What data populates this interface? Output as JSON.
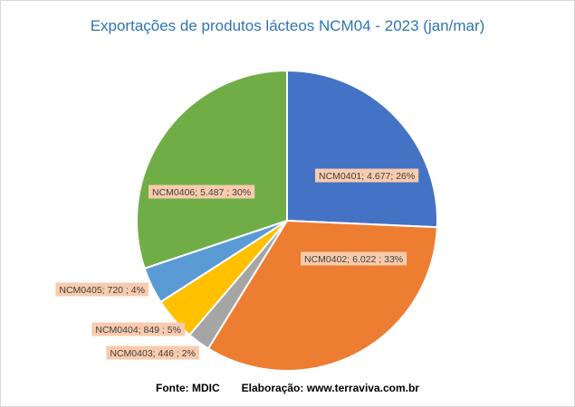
{
  "chart_data": {
    "type": "pie",
    "title": "Exportações de produtos lácteos NCM04 - 2023 (jan/mar)",
    "categories": [
      "NCM0401",
      "NCM0402",
      "NCM0403",
      "NCM0404",
      "NCM0405",
      "NCM0406"
    ],
    "values": [
      4677,
      6022,
      446,
      849,
      720,
      5487
    ],
    "labels": [
      "NCM0401; 4.677; 26%",
      "NCM0402; 6.022 ; 33%",
      "NCM0403; 446 ; 2%",
      "NCM0404; 849 ; 5%",
      "NCM0405; 720 ; 4%",
      "NCM0406; 5.487 ; 30%"
    ],
    "colors": [
      "#4472c4",
      "#ed7d31",
      "#a5a5a5",
      "#ffc000",
      "#5b9bd5",
      "#70ad47"
    ],
    "label_bg": "#f8cbad",
    "legend": "none"
  },
  "footer": {
    "source": "Fonte: MDIC",
    "credit": "Elaboração: www.terraviva.com.br"
  }
}
